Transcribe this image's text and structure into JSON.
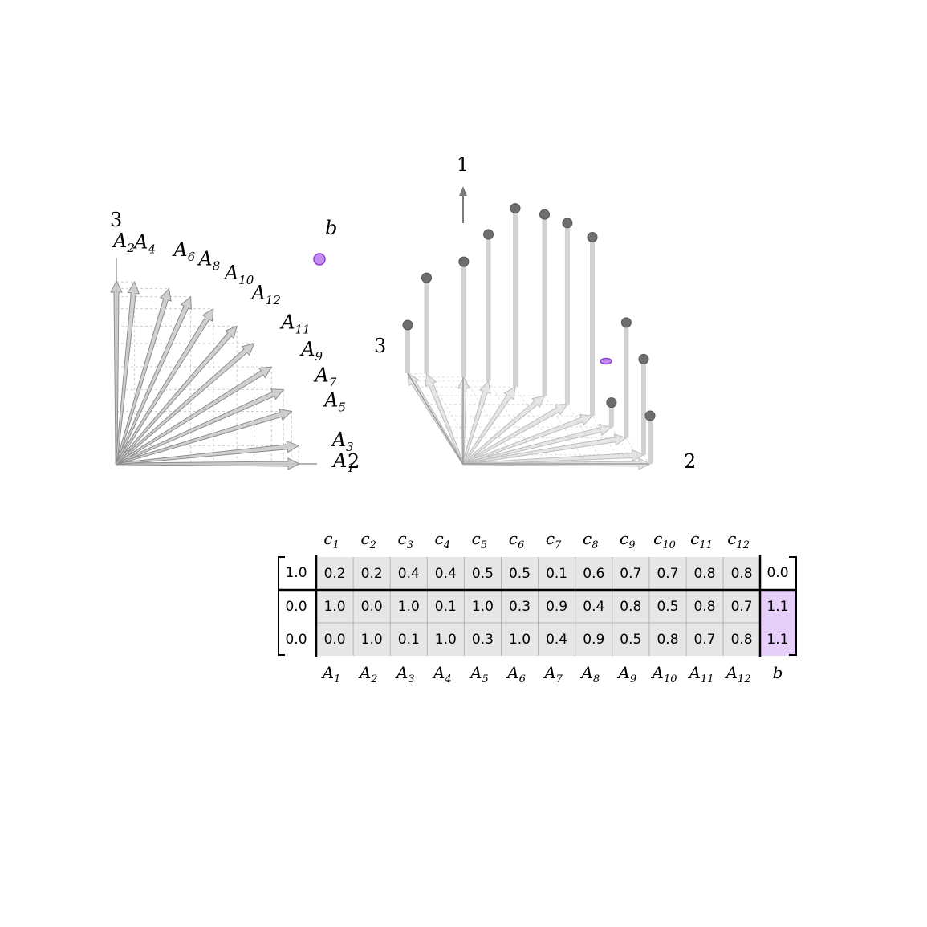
{
  "left_plot": {
    "axis_labels": {
      "horizontal": "2",
      "vertical": "3"
    },
    "vector_labels": [
      "A",
      "A",
      "A",
      "A",
      "A",
      "A",
      "A",
      "A",
      "A",
      "A",
      "A",
      "A"
    ],
    "vector_subscripts": [
      "1",
      "2",
      "3",
      "4",
      "5",
      "6",
      "7",
      "8",
      "9",
      "10",
      "11",
      "12"
    ],
    "point_label": "b"
  },
  "right_plot": {
    "axis_labels": {
      "vertical": "1",
      "left": "3",
      "right": "2"
    }
  },
  "matrix": {
    "header_letter": "c",
    "header_subscripts": [
      "1",
      "2",
      "3",
      "4",
      "5",
      "6",
      "7",
      "8",
      "9",
      "10",
      "11",
      "12"
    ],
    "footer_letter": "A",
    "footer_subscripts": [
      "1",
      "2",
      "3",
      "4",
      "5",
      "6",
      "7",
      "8",
      "9",
      "10",
      "11",
      "12"
    ],
    "footer_b": "b",
    "lead_column": [
      "1.0",
      "0.0",
      "0.0"
    ],
    "rows": [
      [
        "0.2",
        "0.2",
        "0.4",
        "0.4",
        "0.5",
        "0.5",
        "0.1",
        "0.6",
        "0.7",
        "0.7",
        "0.8",
        "0.8"
      ],
      [
        "1.0",
        "0.0",
        "1.0",
        "0.1",
        "1.0",
        "0.3",
        "0.9",
        "0.4",
        "0.8",
        "0.5",
        "0.8",
        "0.7"
      ],
      [
        "0.0",
        "1.0",
        "0.1",
        "1.0",
        "0.3",
        "1.0",
        "0.4",
        "0.9",
        "0.5",
        "0.8",
        "0.7",
        "0.8"
      ]
    ],
    "b_column": [
      "0.0",
      "1.1",
      "1.1"
    ]
  },
  "colors": {
    "vector_fill": "#c8c8c8",
    "vector_stroke": "#8c8c8c",
    "point_fill": "#c38cf2",
    "point_stroke": "#8a3fd0",
    "cell_fill": "#e6e6e6",
    "b_cell_fill": "#e6d0fa",
    "sphere_fill": "#6e6e6e"
  }
}
